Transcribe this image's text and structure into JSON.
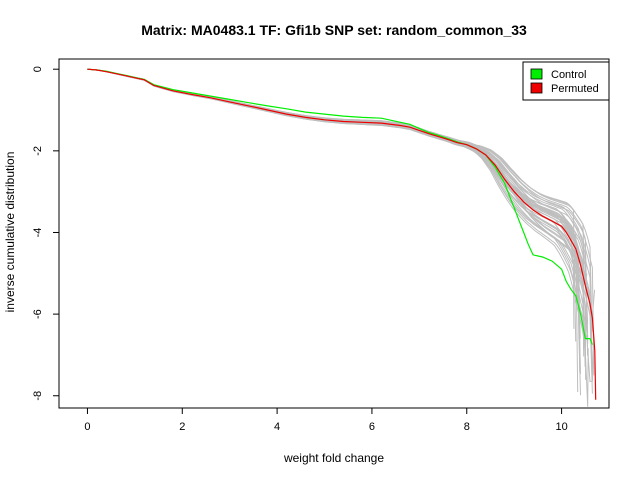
{
  "chart_data": {
    "type": "line",
    "title": "Matrix: MA0483.1 TF: Gfi1b SNP set: random_common_33",
    "xlabel": "weight fold change",
    "ylabel": "inverse cumulative distribution",
    "xlim": [
      -0.6,
      11.0
    ],
    "ylim": [
      -8.3,
      0.25
    ],
    "xticks": [
      0,
      2,
      4,
      6,
      8,
      10
    ],
    "yticks": [
      0,
      -2,
      -4,
      -6,
      -8
    ],
    "grid": false,
    "legend_position": "top-right",
    "legend": [
      {
        "label": "Control",
        "color": "#00ee00"
      },
      {
        "label": "Permuted",
        "color": "#ee0000"
      }
    ],
    "background_series_color": "#bebebe",
    "background_series_count": 40,
    "series": [
      {
        "name": "Control",
        "color": "#00ee00",
        "x": [
          0.0,
          0.2,
          0.4,
          0.6,
          0.8,
          1.0,
          1.2,
          1.4,
          1.8,
          2.2,
          2.6,
          3.0,
          3.4,
          3.8,
          4.2,
          4.6,
          5.0,
          5.4,
          5.8,
          6.2,
          6.6,
          6.8,
          7.0,
          7.2,
          7.4,
          7.6,
          7.8,
          8.0,
          8.2,
          8.4,
          8.6,
          8.8,
          8.9,
          9.0,
          9.1,
          9.2,
          9.3,
          9.4,
          9.6,
          9.8,
          10.0,
          10.1,
          10.2,
          10.3,
          10.4,
          10.5,
          10.6,
          10.65
        ],
        "y": [
          0.0,
          -0.02,
          -0.05,
          -0.1,
          -0.15,
          -0.2,
          -0.25,
          -0.38,
          -0.5,
          -0.58,
          -0.66,
          -0.74,
          -0.82,
          -0.9,
          -0.97,
          -1.05,
          -1.1,
          -1.15,
          -1.18,
          -1.2,
          -1.3,
          -1.35,
          -1.45,
          -1.55,
          -1.62,
          -1.7,
          -1.78,
          -1.85,
          -1.95,
          -2.1,
          -2.4,
          -2.8,
          -3.1,
          -3.4,
          -3.7,
          -4.0,
          -4.3,
          -4.55,
          -4.6,
          -4.7,
          -4.9,
          -5.2,
          -5.4,
          -5.55,
          -6.0,
          -6.6,
          -6.6,
          -6.75
        ]
      },
      {
        "name": "Permuted",
        "color": "#ee0000",
        "x": [
          0.0,
          0.2,
          0.4,
          0.6,
          0.8,
          1.0,
          1.2,
          1.4,
          1.8,
          2.2,
          2.6,
          3.0,
          3.4,
          3.8,
          4.2,
          4.6,
          5.0,
          5.4,
          5.8,
          6.2,
          6.6,
          6.8,
          7.0,
          7.2,
          7.4,
          7.6,
          7.8,
          8.0,
          8.2,
          8.4,
          8.6,
          8.8,
          9.0,
          9.2,
          9.4,
          9.6,
          9.8,
          10.0,
          10.1,
          10.2,
          10.3,
          10.4,
          10.5,
          10.6,
          10.65,
          10.7,
          10.72
        ],
        "y": [
          0.0,
          -0.02,
          -0.06,
          -0.11,
          -0.16,
          -0.21,
          -0.26,
          -0.4,
          -0.53,
          -0.62,
          -0.7,
          -0.8,
          -0.9,
          -1.0,
          -1.1,
          -1.18,
          -1.24,
          -1.28,
          -1.3,
          -1.32,
          -1.38,
          -1.42,
          -1.5,
          -1.58,
          -1.65,
          -1.72,
          -1.8,
          -1.85,
          -1.95,
          -2.1,
          -2.35,
          -2.7,
          -3.0,
          -3.25,
          -3.45,
          -3.6,
          -3.72,
          -3.85,
          -4.0,
          -4.2,
          -4.4,
          -4.8,
          -5.3,
          -5.75,
          -6.1,
          -6.9,
          -8.1
        ]
      }
    ]
  }
}
